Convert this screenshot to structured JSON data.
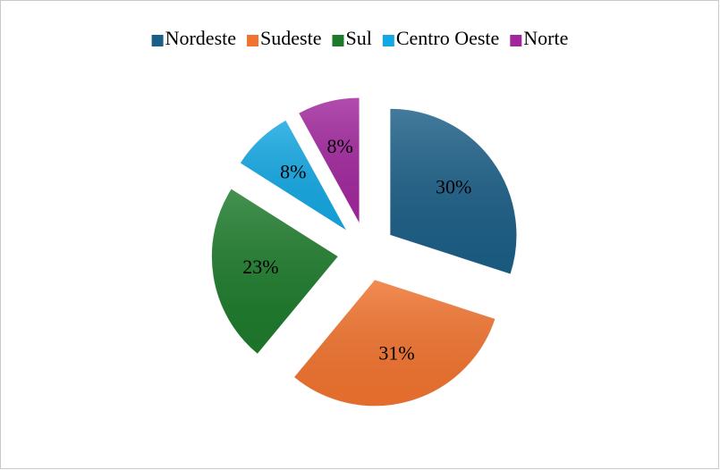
{
  "chart_data": {
    "type": "pie",
    "categories": [
      "Nordeste",
      "Sudeste",
      "Sul",
      "Centro Oeste",
      "Norte"
    ],
    "values": [
      30,
      31,
      23,
      8,
      8
    ],
    "value_labels": [
      "30%",
      "31%",
      "23%",
      "8%",
      "8%"
    ],
    "colors": [
      "#1b5e86",
      "#f0732f",
      "#1d7a2b",
      "#14a7e2",
      "#a1279d"
    ],
    "legend": "top"
  }
}
